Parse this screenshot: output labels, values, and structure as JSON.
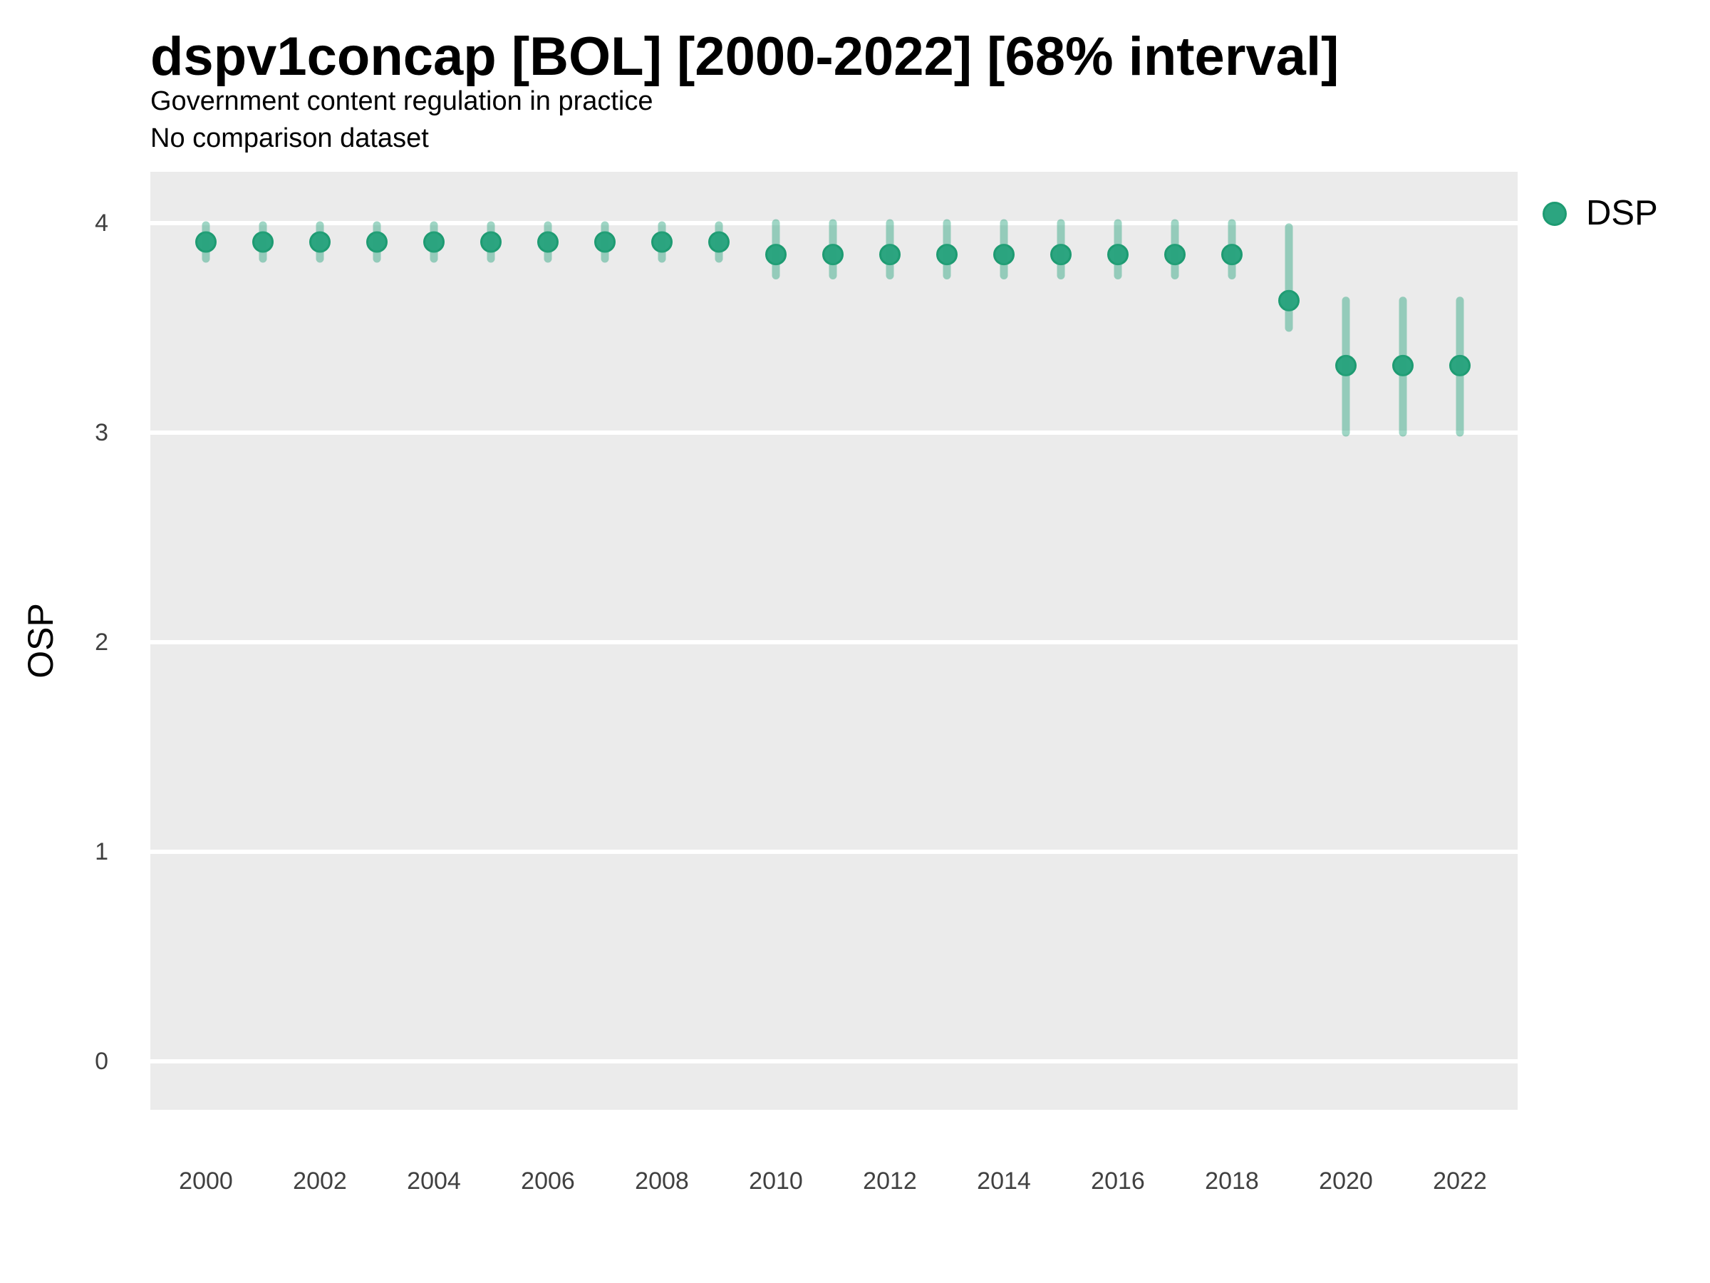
{
  "chart_data": {
    "type": "scatter",
    "title": "dspv1concap [BOL] [2000-2022] [68% interval]",
    "subtitle": "Government content regulation in practice",
    "subtitle2": "No comparison dataset",
    "xlabel": "",
    "ylabel": "OSP",
    "interval_label": "68% interval",
    "legend_position": "right-top",
    "grid": "major-horizontal-white-on-gray",
    "x_ticks": [
      2000,
      2002,
      2004,
      2006,
      2008,
      2010,
      2012,
      2014,
      2016,
      2018,
      2020,
      2022
    ],
    "y_ticks": [
      0,
      1,
      2,
      3,
      4
    ],
    "xlim": [
      1999.5,
      2022.5
    ],
    "ylim": [
      -0.23,
      4.24
    ],
    "series": [
      {
        "name": "DSP",
        "points": [
          {
            "year": 2000,
            "est": 3.91,
            "lo": 3.83,
            "hi": 3.99
          },
          {
            "year": 2001,
            "est": 3.91,
            "lo": 3.83,
            "hi": 3.99
          },
          {
            "year": 2002,
            "est": 3.91,
            "lo": 3.83,
            "hi": 3.99
          },
          {
            "year": 2003,
            "est": 3.91,
            "lo": 3.83,
            "hi": 3.99
          },
          {
            "year": 2004,
            "est": 3.91,
            "lo": 3.83,
            "hi": 3.99
          },
          {
            "year": 2005,
            "est": 3.91,
            "lo": 3.83,
            "hi": 3.99
          },
          {
            "year": 2006,
            "est": 3.91,
            "lo": 3.83,
            "hi": 3.99
          },
          {
            "year": 2007,
            "est": 3.91,
            "lo": 3.83,
            "hi": 3.99
          },
          {
            "year": 2008,
            "est": 3.91,
            "lo": 3.83,
            "hi": 3.99
          },
          {
            "year": 2009,
            "est": 3.91,
            "lo": 3.83,
            "hi": 3.99
          },
          {
            "year": 2010,
            "est": 3.85,
            "lo": 3.75,
            "hi": 4.0
          },
          {
            "year": 2011,
            "est": 3.85,
            "lo": 3.75,
            "hi": 4.0
          },
          {
            "year": 2012,
            "est": 3.85,
            "lo": 3.75,
            "hi": 4.0
          },
          {
            "year": 2013,
            "est": 3.85,
            "lo": 3.75,
            "hi": 4.0
          },
          {
            "year": 2014,
            "est": 3.85,
            "lo": 3.75,
            "hi": 4.0
          },
          {
            "year": 2015,
            "est": 3.85,
            "lo": 3.75,
            "hi": 4.0
          },
          {
            "year": 2016,
            "est": 3.85,
            "lo": 3.75,
            "hi": 4.0
          },
          {
            "year": 2017,
            "est": 3.85,
            "lo": 3.75,
            "hi": 4.0
          },
          {
            "year": 2018,
            "est": 3.85,
            "lo": 3.75,
            "hi": 4.0
          },
          {
            "year": 2019,
            "est": 3.63,
            "lo": 3.5,
            "hi": 3.98
          },
          {
            "year": 2020,
            "est": 3.32,
            "lo": 3.0,
            "hi": 3.63
          },
          {
            "year": 2021,
            "est": 3.32,
            "lo": 3.0,
            "hi": 3.63
          },
          {
            "year": 2022,
            "est": 3.32,
            "lo": 3.0,
            "hi": 3.63
          }
        ]
      }
    ],
    "legend": [
      {
        "label": "DSP",
        "color": "#2CA580"
      }
    ],
    "colors": {
      "point_fill": "#2CA580",
      "point_stroke": "#1E9B72",
      "interval_bar": "rgba(42,163,126,0.45)",
      "panel_background": "#EBEBEB",
      "gridline": "#FFFFFF",
      "tick_text": "#404040",
      "title_text": "#000000"
    }
  }
}
